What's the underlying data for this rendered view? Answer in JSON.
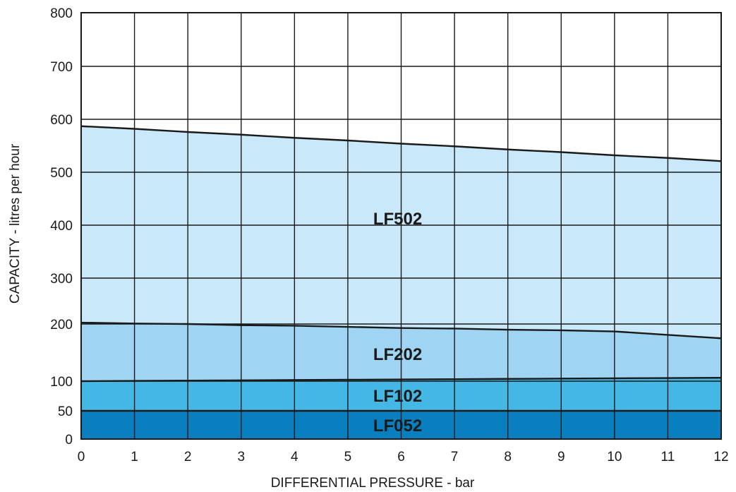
{
  "chart_data": {
    "type": "area",
    "title": "",
    "xlabel": "DIFFERENTIAL PRESSURE - bar",
    "ylabel": "CAPACITY - litres per hour",
    "xlim": [
      0,
      12
    ],
    "ylim": [
      0,
      800
    ],
    "x_ticks": [
      "0",
      "1",
      "2",
      "3",
      "4",
      "5",
      "6",
      "7",
      "8",
      "9",
      "10",
      "11",
      "12"
    ],
    "y_ticks": [
      "0",
      "50",
      "100",
      "200",
      "300",
      "400",
      "500",
      "600",
      "700",
      "800"
    ],
    "grid": true,
    "x": [
      0,
      1,
      2,
      3,
      4,
      5,
      6,
      7,
      8,
      9,
      10,
      11,
      12
    ],
    "series": [
      {
        "name": "LF052",
        "color": "#0a7fbf",
        "values": [
          50,
          50,
          50,
          50,
          50,
          50,
          50,
          50,
          50,
          50,
          50,
          50,
          50
        ]
      },
      {
        "name": "LF102",
        "color": "#44b7e4",
        "values": [
          100,
          100.5,
          101,
          101.5,
          102,
          102.5,
          103,
          103.5,
          104,
          104.5,
          105,
          105.5,
          106
        ]
      },
      {
        "name": "LF202",
        "color": "#9fd4f2",
        "values": [
          203,
          201,
          200,
          198,
          197,
          195,
          193,
          192,
          190,
          189,
          187,
          181,
          175
        ]
      },
      {
        "name": "LF502",
        "color": "#c9e8f9",
        "values": [
          587,
          582,
          576,
          571,
          565,
          560,
          554,
          549,
          543,
          538,
          532,
          527,
          521
        ]
      }
    ]
  }
}
